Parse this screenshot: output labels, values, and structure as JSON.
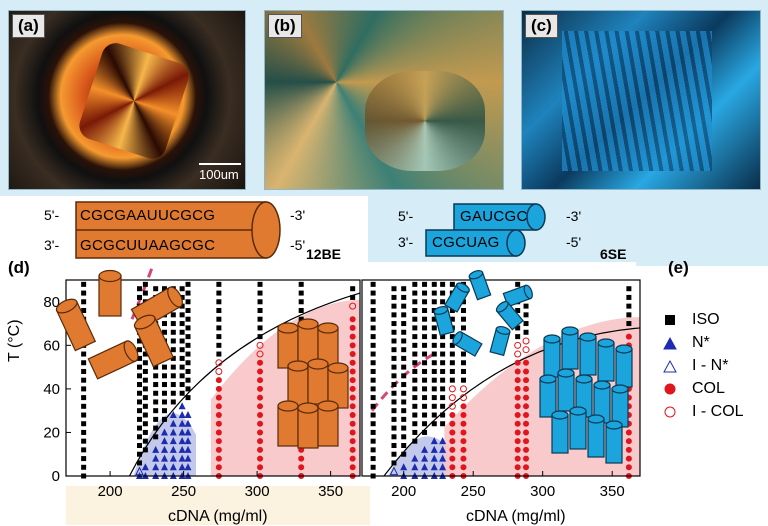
{
  "panels": {
    "a": {
      "label": "(a)",
      "scalebar": "100um"
    },
    "b": {
      "label": "(b)"
    },
    "c": {
      "label": "(c)"
    },
    "d": {
      "label": "(d)"
    },
    "e": {
      "label": "(e)"
    }
  },
  "sequences": {
    "left": {
      "top_5": "5'-",
      "top_seq": "CGCGAAUUCGCG",
      "top_3": "-3'",
      "bot_3": "3'-",
      "bot_seq": "GCGCUUAAGCGC",
      "bot_5": "-5'",
      "name": "12BE"
    },
    "right": {
      "top_5": "5'-",
      "top_seq": "GAUCGC",
      "top_3": "-3'",
      "bot_3": "3'-",
      "bot_seq": "CGCUAG",
      "bot_5": "-5'",
      "name": "6SE"
    }
  },
  "legend": [
    {
      "label": "ISO",
      "marker": "filled-square",
      "color": "#000000"
    },
    {
      "label": "N*",
      "marker": "filled-triangle",
      "color": "#1d2bb0"
    },
    {
      "label": "I - N*",
      "marker": "open-triangle",
      "color": "#1d2bb0"
    },
    {
      "label": "COL",
      "marker": "filled-circle",
      "color": "#e0161e"
    },
    {
      "label": "I - COL",
      "marker": "open-circle",
      "color": "#e0161e"
    }
  ],
  "chart_data": [
    {
      "type": "scatter",
      "name_panel": "12BE",
      "ylabel": "T (°C)",
      "xlabel": "cDNA (mg/ml)",
      "xlim": [
        170,
        370
      ],
      "ylim": [
        0,
        90
      ],
      "xticks": [
        "200",
        "250",
        "300",
        "350"
      ],
      "yticks": [
        "0",
        "20",
        "40",
        "60",
        "80"
      ],
      "columns": [
        {
          "x": 182,
          "iso_max": 88
        },
        {
          "x": 220,
          "iso_max": 88,
          "nstar_max": 0,
          "open_tri": [
            2
          ]
        },
        {
          "x": 224,
          "iso_max": 88,
          "nstar_max": 6
        },
        {
          "x": 231,
          "iso_max": 88,
          "nstar_max": 12
        },
        {
          "x": 237,
          "iso_max": 88,
          "nstar_max": 20
        },
        {
          "x": 243,
          "iso_max": 88,
          "nstar_max": 28
        },
        {
          "x": 249,
          "iso_max": 88,
          "nstar_max": 32
        },
        {
          "x": 253,
          "iso_max": 88,
          "nstar_max": 30
        },
        {
          "x": 274,
          "iso_max": 88,
          "col_max": 44,
          "open_circ": [
            48,
            52
          ]
        },
        {
          "x": 302,
          "iso_max": 88,
          "col_max": 52,
          "open_circ": [
            56,
            60
          ]
        },
        {
          "x": 330,
          "iso_max": 88,
          "col_max": 60,
          "open_circ": [
            64,
            68
          ]
        },
        {
          "x": 365,
          "iso_max": 88,
          "col_max": 74,
          "open_circ": [
            78
          ]
        }
      ]
    },
    {
      "type": "scatter",
      "name_panel": "6SE",
      "xlabel": "cDNA (mg/ml)",
      "xlim": [
        170,
        370
      ],
      "ylim": [
        0,
        90
      ],
      "xticks": [
        "200",
        "250",
        "300",
        "350"
      ],
      "columns": [
        {
          "x": 178,
          "iso_max": 88
        },
        {
          "x": 193,
          "iso_max": 88,
          "open_tri": [
            2
          ]
        },
        {
          "x": 200,
          "iso_max": 88,
          "nstar_max": 4
        },
        {
          "x": 208,
          "iso_max": 88,
          "nstar_max": 10
        },
        {
          "x": 215,
          "iso_max": 88,
          "nstar_max": 14
        },
        {
          "x": 222,
          "iso_max": 88,
          "nstar_max": 18
        },
        {
          "x": 228,
          "iso_max": 88,
          "nstar_max": 18
        },
        {
          "x": 235,
          "iso_max": 88,
          "col_max": 28,
          "open_circ": [
            32,
            36,
            40
          ]
        },
        {
          "x": 243,
          "iso_max": 88,
          "col_max": 32,
          "open_circ": [
            36,
            40
          ]
        },
        {
          "x": 282,
          "iso_max": 88,
          "col_max": 52,
          "open_circ": [
            56,
            60
          ]
        },
        {
          "x": 288,
          "iso_max": 88,
          "col_max": 54,
          "open_circ": [
            58,
            62
          ]
        },
        {
          "x": 362,
          "iso_max": 88,
          "col_max": 66
        }
      ]
    }
  ],
  "colors": {
    "iso": "#000000",
    "nstar": "#1d2bb0",
    "col": "#e0161e",
    "nstar_fill": "#b9bfe8",
    "col_fill": "#f7c4c6",
    "cyl_orange": "#e07a30",
    "cyl_blue": "#1ba5dc",
    "dash": "#d6457c"
  }
}
